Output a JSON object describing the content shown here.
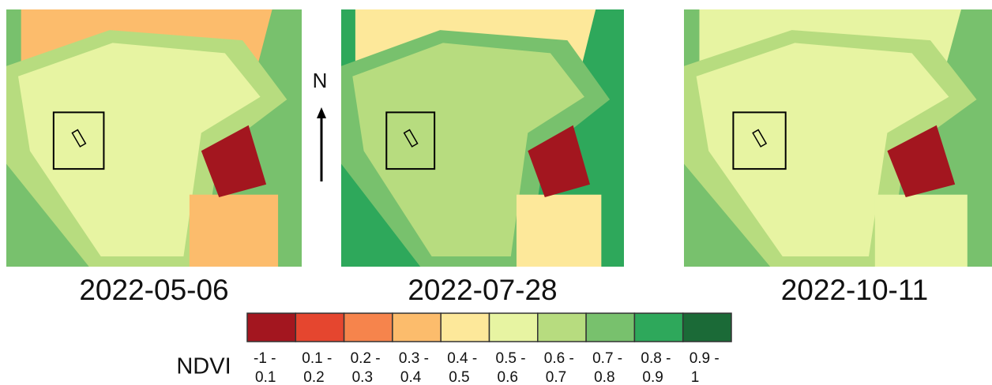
{
  "panels": [
    {
      "date": "2022-05-06"
    },
    {
      "date": "2022-07-28"
    },
    {
      "date": "2022-10-11"
    }
  ],
  "north_label": "N",
  "legend": {
    "title": "NDVI",
    "classes": [
      {
        "color": "#a3161f",
        "line1": "-1 -",
        "line2": "0.1"
      },
      {
        "color": "#e5462f",
        "line1": "0.1 -",
        "line2": "0.2"
      },
      {
        "color": "#f6844c",
        "line1": "0.2 -",
        "line2": "0.3"
      },
      {
        "color": "#fcbc6c",
        "line1": "0.3 -",
        "line2": "0.4"
      },
      {
        "color": "#fde89a",
        "line1": "0.4 -",
        "line2": "0.5"
      },
      {
        "color": "#e7f4a2",
        "line1": "0.5 -",
        "line2": "0.6"
      },
      {
        "color": "#b7dc7f",
        "line1": "0.6 -",
        "line2": "0.7"
      },
      {
        "color": "#78c16d",
        "line1": "0.7 -",
        "line2": "0.8"
      },
      {
        "color": "#2ea85b",
        "line1": "0.8 -",
        "line2": "0.9"
      },
      {
        "color": "#1b6a37",
        "line1": "0.9 -",
        "line2": "1"
      }
    ]
  }
}
